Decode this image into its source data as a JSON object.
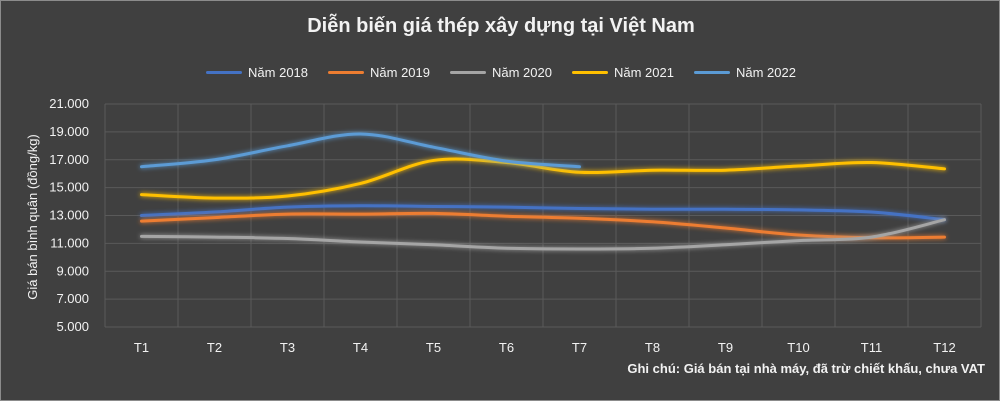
{
  "chart_data": {
    "type": "line",
    "title": "Diễn biến giá thép xây dựng tại Việt Nam",
    "ylabel": "Giá bán bình quân (đồng/kg)",
    "xlabel": "",
    "categories": [
      "T1",
      "T2",
      "T3",
      "T4",
      "T5",
      "T6",
      "T7",
      "T8",
      "T9",
      "T10",
      "T11",
      "T12"
    ],
    "ylim": [
      5000,
      21000
    ],
    "yticks": [
      "5.000",
      "7.000",
      "9.000",
      "11.000",
      "13.000",
      "15.000",
      "17.000",
      "19.000",
      "21.000"
    ],
    "ytick_values": [
      5000,
      7000,
      9000,
      11000,
      13000,
      15000,
      17000,
      19000,
      21000
    ],
    "grid": true,
    "legend_position": "top",
    "series": [
      {
        "name": "Năm 2018",
        "color": "#4472c4",
        "values": [
          13000,
          13250,
          13600,
          13700,
          13650,
          13600,
          13500,
          13450,
          13450,
          13400,
          13250,
          12700
        ]
      },
      {
        "name": "Năm 2019",
        "color": "#ed7d31",
        "values": [
          12600,
          12850,
          13100,
          13100,
          13150,
          12950,
          12800,
          12550,
          12100,
          11600,
          11400,
          11450
        ]
      },
      {
        "name": "Năm 2020",
        "color": "#a5a5a5",
        "values": [
          11500,
          11450,
          11350,
          11100,
          10900,
          10650,
          10600,
          10650,
          10900,
          11200,
          11450,
          12700
        ]
      },
      {
        "name": "Năm 2021",
        "color": "#ffc000",
        "values": [
          14500,
          14250,
          14400,
          15300,
          16950,
          16800,
          16100,
          16250,
          16250,
          16550,
          16800,
          16350
        ]
      },
      {
        "name": "Năm 2022",
        "color": "#5b9bd5",
        "values": [
          16500,
          17000,
          18000,
          18850,
          17900,
          16900,
          16500,
          null,
          null,
          null,
          null,
          null
        ]
      }
    ],
    "note": "Ghi chú: Giá bán tại nhà máy, đã trừ chiết khấu, chưa VAT"
  }
}
